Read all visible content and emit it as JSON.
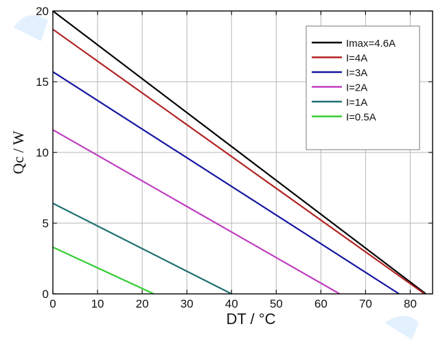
{
  "chart_data": {
    "type": "line",
    "title": "",
    "xlabel": "DT / °C",
    "ylabel": "Qc / W",
    "xlim": [
      0,
      85
    ],
    "ylim": [
      0,
      20
    ],
    "xticks": [
      0,
      10,
      20,
      30,
      40,
      50,
      60,
      70,
      80
    ],
    "yticks": [
      0,
      5,
      10,
      15,
      20
    ],
    "grid": true,
    "legend_position": "top-right",
    "series": [
      {
        "name": "Imax=4.6A",
        "color": "#000000",
        "x": [
          0,
          83.5
        ],
        "y": [
          20.0,
          0
        ]
      },
      {
        "name": "I=4A",
        "color": "#b22222",
        "x": [
          0,
          83.2
        ],
        "y": [
          18.7,
          0
        ]
      },
      {
        "name": "I=3A",
        "color": "#1414a0",
        "x": [
          0,
          77.5
        ],
        "y": [
          15.7,
          0
        ]
      },
      {
        "name": "I=2A",
        "color": "#c03cc0",
        "x": [
          0,
          64.2
        ],
        "y": [
          11.6,
          0
        ]
      },
      {
        "name": "I=1A",
        "color": "#1f6f6f",
        "x": [
          0,
          40.0
        ],
        "y": [
          6.4,
          0
        ]
      },
      {
        "name": "I=0.5A",
        "color": "#33cc33",
        "x": [
          0,
          22.6
        ],
        "y": [
          3.3,
          0
        ]
      }
    ]
  }
}
